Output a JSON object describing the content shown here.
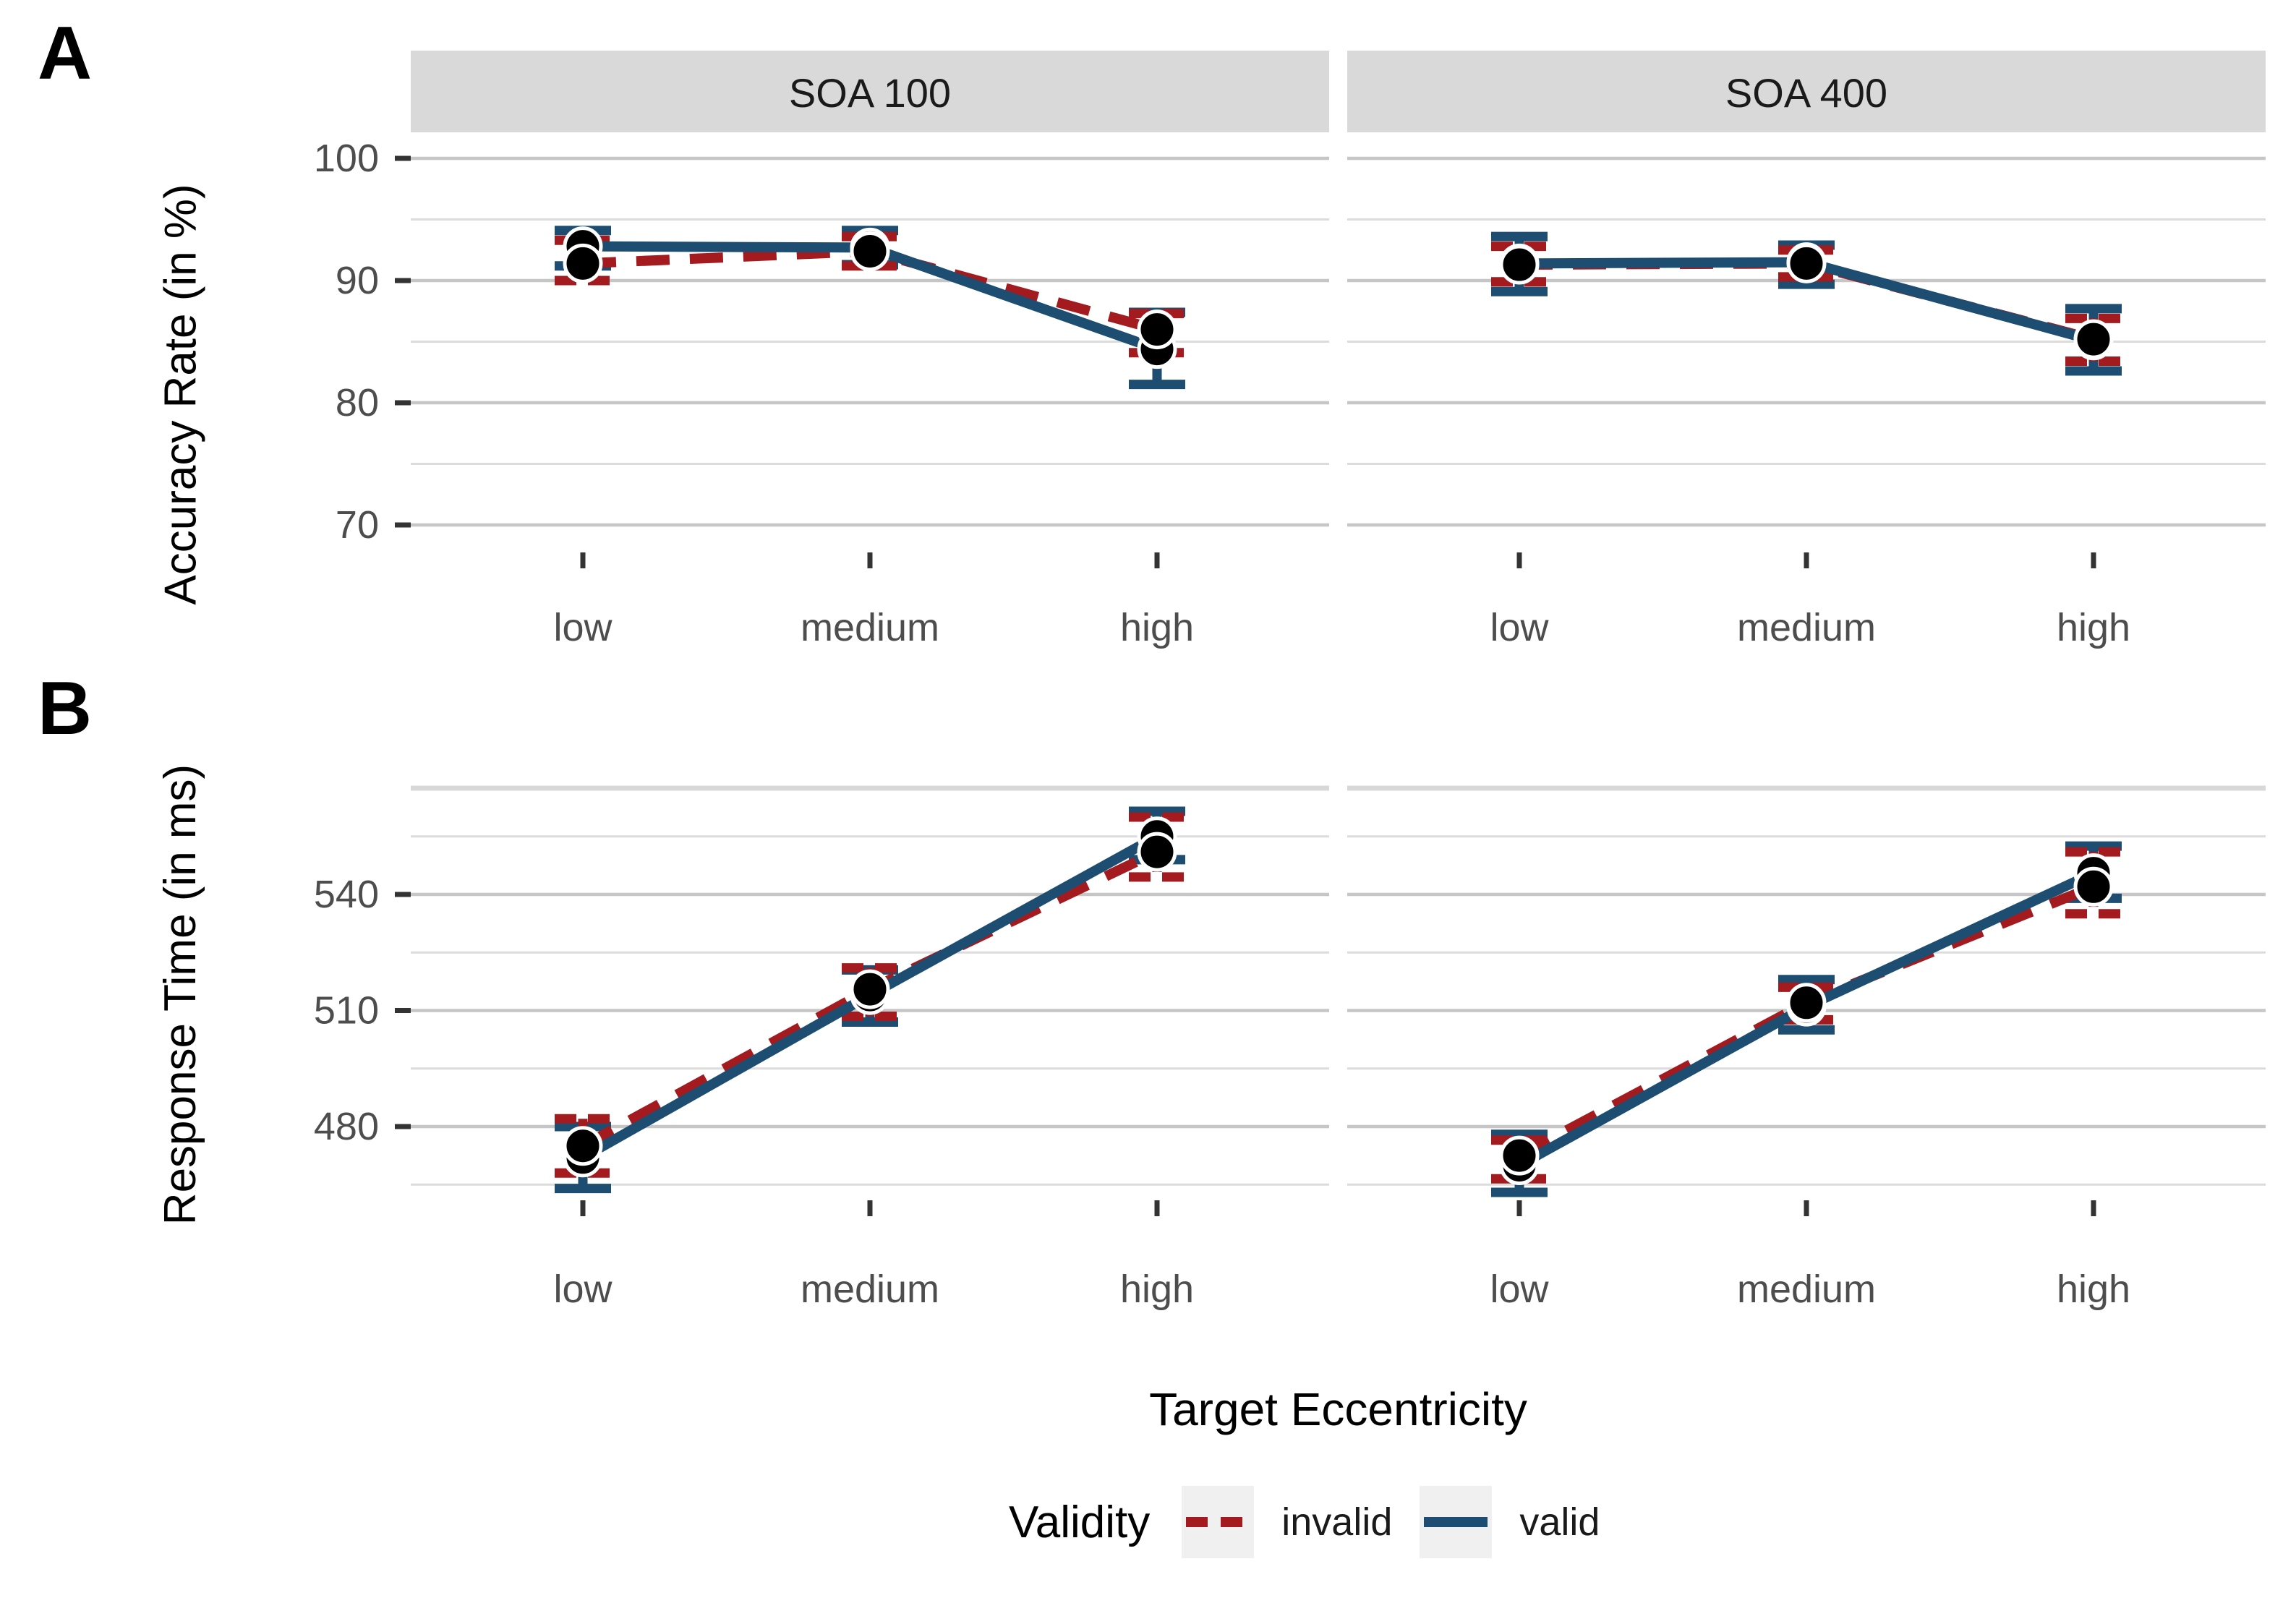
{
  "panel_labels": {
    "a": "A",
    "b": "B"
  },
  "facet_labels": [
    "SOA 100",
    "SOA 400"
  ],
  "x_title": "Target Eccentricity",
  "legend": {
    "title": "Validity",
    "items": [
      {
        "label": "invalid",
        "style": "dashed",
        "color": "#A31B1F"
      },
      {
        "label": "valid",
        "style": "solid",
        "color": "#1D4D70"
      }
    ]
  },
  "colors": {
    "invalid": "#A31B1F",
    "valid": "#1D4D70",
    "point": "#000000",
    "point_ring": "#ffffff",
    "strip_bg": "#D9D9D9",
    "strip_text": "#1A1A1A",
    "grid_major": "#C6C6C6",
    "grid_minor": "#DCDCDC",
    "panel_top_line": "#D8D8D8",
    "axis_text": "#4D4D4D",
    "tick": "#333333",
    "legend_key_bg": "#F0F0F0"
  },
  "chart_data": [
    {
      "id": "accuracy",
      "type": "line",
      "panel_label": "A",
      "ylabel": "Accuracy Rate (in %)",
      "xlabel": "Target Eccentricity",
      "categories": [
        "low",
        "medium",
        "high"
      ],
      "y_ticks": [
        100,
        90,
        80,
        70
      ],
      "y_minor": [
        95,
        85,
        75
      ],
      "ylim": [
        68,
        101.8
      ],
      "legend_position": "none",
      "grid": true,
      "facets": [
        {
          "name": "SOA 100",
          "series": [
            {
              "name": "valid",
              "style": "solid",
              "means": [
                92.8,
                92.7,
                84.4
              ],
              "ci_low": [
                91.2,
                91.3,
                81.5
              ],
              "ci_high": [
                94.1,
                94.1,
                87.4
              ]
            },
            {
              "name": "invalid",
              "style": "dashed",
              "means": [
                91.4,
                92.4,
                86.0
              ],
              "ci_low": [
                90.0,
                91.2,
                84.1
              ],
              "ci_high": [
                93.3,
                93.6,
                87.3
              ]
            }
          ]
        },
        {
          "name": "SOA 400",
          "series": [
            {
              "name": "valid",
              "style": "solid",
              "means": [
                91.4,
                91.5,
                85.1
              ],
              "ci_low": [
                89.1,
                89.7,
                82.6
              ],
              "ci_high": [
                93.6,
                92.9,
                87.7
              ]
            },
            {
              "name": "invalid",
              "style": "dashed",
              "means": [
                91.3,
                91.4,
                85.2
              ],
              "ci_low": [
                89.9,
                90.3,
                83.4
              ],
              "ci_high": [
                92.8,
                92.5,
                86.9
              ]
            }
          ]
        }
      ]
    },
    {
      "id": "response_time",
      "type": "line",
      "panel_label": "B",
      "ylabel": "Response Time (in ms)",
      "xlabel": "Target Eccentricity",
      "categories": [
        "low",
        "medium",
        "high"
      ],
      "y_ticks": [
        540,
        510,
        480
      ],
      "y_minor": [
        555,
        525,
        495,
        465
      ],
      "ylim": [
        461,
        567.5
      ],
      "legend_position": "bottom",
      "grid": true,
      "facets": [
        {
          "name": "SOA 100",
          "series": [
            {
              "name": "valid",
              "style": "solid",
              "means": [
                472,
                514,
                555
              ],
              "ci_low": [
                464,
                507,
                549
              ],
              "ci_high": [
                480,
                520.5,
                561.5
              ]
            },
            {
              "name": "invalid",
              "style": "dashed",
              "means": [
                475,
                515.5,
                551
              ],
              "ci_low": [
                468,
                508.5,
                544.5
              ],
              "ci_high": [
                482,
                521,
                560
              ]
            }
          ]
        },
        {
          "name": "SOA 400",
          "series": [
            {
              "name": "valid",
              "style": "solid",
              "means": [
                470,
                511,
                545.5
              ],
              "ci_low": [
                463,
                505,
                539
              ],
              "ci_high": [
                478,
                518,
                552.5
              ]
            },
            {
              "name": "invalid",
              "style": "dashed",
              "means": [
                472.5,
                512,
                542
              ],
              "ci_low": [
                466.5,
                507.6,
                535
              ],
              "ci_high": [
                476.5,
                516,
                551
              ]
            }
          ]
        }
      ]
    }
  ]
}
